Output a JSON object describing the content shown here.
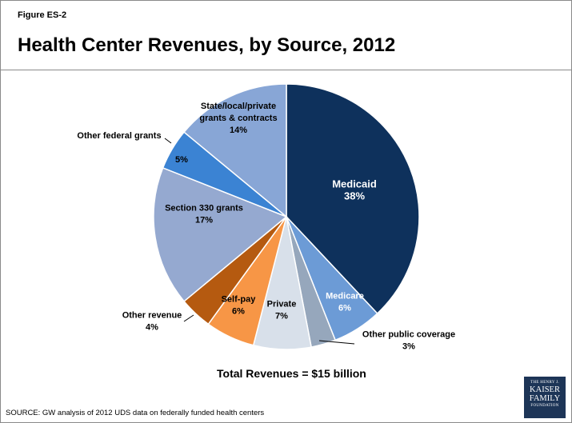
{
  "figure_label": "Figure ES-2",
  "title": "Health Center Revenues, by Source, 2012",
  "total_label": "Total Revenues = $15 billion",
  "source": "SOURCE: GW analysis of 2012 UDS data on federally funded health centers",
  "logo": {
    "line1": "THE HENRY J.",
    "line2": "KAISER",
    "line3": "FAMILY",
    "line4": "FOUNDATION"
  },
  "chart_data": {
    "type": "pie",
    "slices": [
      {
        "label": "Medicaid",
        "value": 38,
        "display": "38%",
        "color": "#0e315c"
      },
      {
        "label": "Medicare",
        "value": 6,
        "display": "6%",
        "color": "#6c9bd6"
      },
      {
        "label": "Other public coverage",
        "value": 3,
        "display": "3%",
        "color": "#96a7bc"
      },
      {
        "label": "Private",
        "value": 7,
        "display": "7%",
        "color": "#d8e0ea"
      },
      {
        "label": "Self-pay",
        "value": 6,
        "display": "6%",
        "color": "#f79646"
      },
      {
        "label": "Other revenue",
        "value": 4,
        "display": "4%",
        "color": "#b55a10"
      },
      {
        "label": "Section 330 grants",
        "value": 17,
        "display": "17%",
        "color": "#95a9d0"
      },
      {
        "label": "Other federal grants",
        "value": 5,
        "display": "5%",
        "color": "#3b83d3"
      },
      {
        "label": "State/local/private grants & contracts",
        "value": 14,
        "display": "14%",
        "color": "#88a6d6"
      }
    ]
  }
}
